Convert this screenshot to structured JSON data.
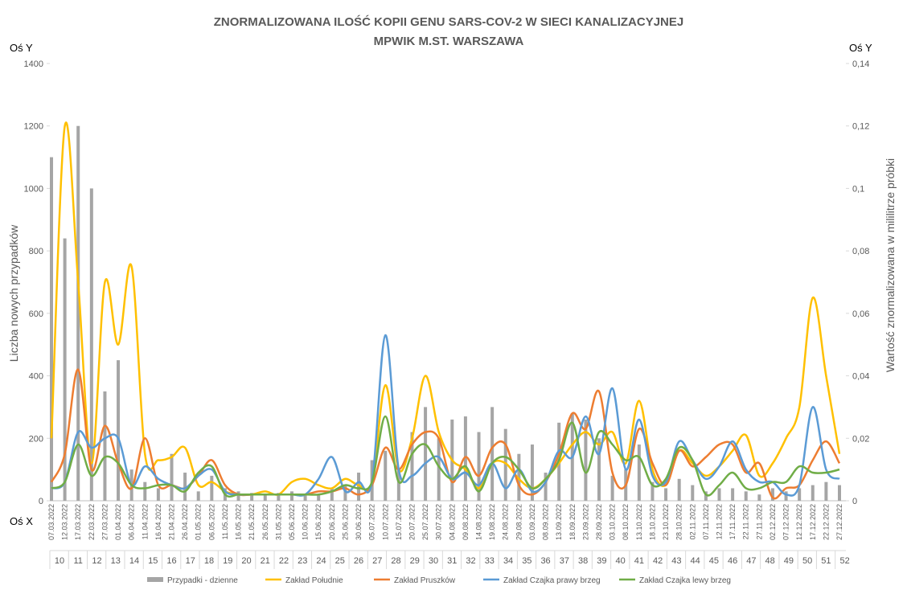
{
  "chart_data": {
    "type": "combo",
    "title": [
      "ZNORMALIZOWANA ILOŚĆ KOPII GENU SARS-COV-2 W SIECI KANALIZACYJNEJ",
      "MPWIK M.ST. WARSZAWA"
    ],
    "y_axis_name": "Oś Y",
    "y2_axis_name": "Oś Y",
    "x_axis_name": "Oś X",
    "ylabel": "Liczba nowych przypadków",
    "y2label": "Wartość znormalizowana w mililitrze próbki",
    "x": [
      "07.03.2022",
      "12.03.2022",
      "17.03.2022",
      "22.03.2022",
      "27.03.2022",
      "01.04.2022",
      "06.04.2022",
      "11.04.2022",
      "16.04.2022",
      "21.04.2022",
      "26.04.2022",
      "01.05.2022",
      "06.05.2022",
      "11.05.2022",
      "16.05.2022",
      "21.05.2022",
      "26.05.2022",
      "31.05.2022",
      "05.06.2022",
      "10.06.2022",
      "15.06.2022",
      "20.06.2022",
      "25.06.2022",
      "30.06.2022",
      "05.07.2022",
      "10.07.2022",
      "15.07.2022",
      "20.07.2022",
      "25.07.2022",
      "30.07.2022",
      "04.08.2022",
      "09.08.2022",
      "14.08.2022",
      "19.08.2022",
      "24.08.2022",
      "29.08.2022",
      "03.09.2022",
      "08.09.2022",
      "13.09.2022",
      "18.09.2022",
      "23.09.2022",
      "28.09.2022",
      "03.10.2022",
      "08.10.2022",
      "13.10.2022",
      "18.10.2022",
      "23.10.2022",
      "28.10.2022",
      "02.11.2022",
      "07.11.2022",
      "12.11.2022",
      "17.11.2022",
      "22.11.2022",
      "27.11.2022",
      "02.12.2022",
      "07.12.2022",
      "12.12.2022",
      "17.12.2022",
      "22.12.2022",
      "27.12.2022"
    ],
    "week_labels": [
      "10",
      "11",
      "12",
      "13",
      "14",
      "15",
      "16",
      "17",
      "18",
      "19",
      "20",
      "21",
      "22",
      "23",
      "24",
      "25",
      "26",
      "27",
      "28",
      "29",
      "30",
      "31",
      "32",
      "33",
      "34",
      "35",
      "36",
      "37",
      "38",
      "39",
      "40",
      "41",
      "42",
      "43",
      "44",
      "45",
      "46",
      "47",
      "48",
      "49",
      "50",
      "51",
      "52"
    ],
    "ylim": [
      0,
      1400
    ],
    "yticks": [
      0,
      200,
      400,
      600,
      800,
      1000,
      1200,
      1400
    ],
    "y2lim": [
      0,
      0.14
    ],
    "y2ticks": [
      0,
      {
        "value": 0.02,
        "label": "0,02"
      },
      {
        "value": 0.04,
        "label": "0,04"
      },
      {
        "value": 0.06,
        "label": "0,06"
      },
      {
        "value": 0.08,
        "label": "0,08"
      },
      {
        "value": 0.1,
        "label": "0,1"
      },
      {
        "value": 0.12,
        "label": "0,12"
      },
      {
        "value": 0.14,
        "label": "0,14"
      }
    ],
    "grid": false,
    "legend": "bottom",
    "series": [
      {
        "name": "Przypadki - dzienne",
        "type": "bar",
        "color": "#a5a5a5",
        "values": [
          1100,
          840,
          1200,
          1000,
          350,
          450,
          100,
          60,
          40,
          150,
          90,
          30,
          80,
          40,
          30,
          25,
          20,
          25,
          30,
          20,
          20,
          40,
          50,
          90,
          130,
          160,
          100,
          220,
          300,
          200,
          260,
          270,
          220,
          300,
          230,
          150,
          180,
          90,
          250,
          280,
          260,
          200,
          80,
          100,
          180,
          60,
          40,
          70,
          50,
          30,
          40,
          40,
          30,
          20,
          40,
          30,
          40,
          50,
          60,
          50
        ]
      },
      {
        "name": "Zakład Południe",
        "type": "line",
        "axis": "y2",
        "color": "#ffc000",
        "values": [
          0.02,
          0.12,
          0.07,
          0.012,
          0.07,
          0.05,
          0.075,
          0.015,
          0.013,
          0.014,
          0.017,
          0.005,
          0.006,
          0.003,
          0.002,
          0.002,
          0.003,
          0.002,
          0.006,
          0.007,
          0.005,
          0.004,
          0.007,
          0.005,
          0.006,
          0.037,
          0.01,
          0.02,
          0.04,
          0.022,
          0.013,
          0.01,
          0.004,
          0.012,
          0.012,
          0.007,
          0.004,
          0.007,
          0.012,
          0.018,
          0.022,
          0.018,
          0.022,
          0.012,
          0.032,
          0.01,
          0.005,
          0.016,
          0.012,
          0.008,
          0.011,
          0.016,
          0.021,
          0.008,
          0.012,
          0.02,
          0.03,
          0.065,
          0.04,
          0.015
        ]
      },
      {
        "name": "Zakład Pruszków",
        "type": "line",
        "axis": "y2",
        "color": "#ed7d31",
        "values": [
          0.006,
          0.015,
          0.042,
          0.01,
          0.024,
          0.012,
          0.004,
          0.02,
          0.005,
          0.005,
          0.004,
          0.008,
          0.013,
          0.005,
          0.002,
          0.002,
          0.002,
          0.002,
          0.002,
          0.002,
          0.003,
          0.003,
          0.004,
          0.002,
          0.005,
          0.017,
          0.01,
          0.018,
          0.022,
          0.02,
          0.006,
          0.014,
          0.008,
          0.017,
          0.018,
          0.005,
          0.002,
          0.006,
          0.015,
          0.028,
          0.023,
          0.035,
          0.009,
          0.005,
          0.023,
          0.012,
          0.005,
          0.016,
          0.011,
          0.014,
          0.018,
          0.018,
          0.009,
          0.012,
          0.001,
          0.004,
          0.005,
          0.013,
          0.019,
          0.012
        ]
      },
      {
        "name": "Zakład Czajka prawy brzeg",
        "type": "line",
        "axis": "y2",
        "color": "#5b9bd5",
        "values": [
          0.004,
          0.006,
          0.022,
          0.017,
          0.02,
          0.02,
          0.005,
          0.011,
          0.007,
          0.005,
          0.004,
          0.008,
          0.01,
          0.003,
          0.002,
          0.002,
          0.002,
          0.002,
          0.002,
          0.002,
          0.007,
          0.014,
          0.003,
          0.006,
          0.006,
          0.053,
          0.01,
          0.008,
          0.012,
          0.014,
          0.007,
          0.009,
          0.005,
          0.012,
          0.004,
          0.01,
          0.003,
          0.006,
          0.016,
          0.014,
          0.027,
          0.015,
          0.036,
          0.01,
          0.026,
          0.008,
          0.006,
          0.019,
          0.013,
          0.007,
          0.011,
          0.019,
          0.01,
          0.006,
          0.006,
          0.002,
          0.005,
          0.03,
          0.01,
          0.007
        ]
      },
      {
        "name": "Zakład Czajka lewy brzeg",
        "type": "line",
        "axis": "y2",
        "color": "#70ad47",
        "values": [
          0.004,
          0.006,
          0.018,
          0.008,
          0.014,
          0.012,
          0.005,
          0.004,
          0.005,
          0.005,
          0.003,
          0.009,
          0.011,
          0.002,
          0.002,
          0.002,
          0.002,
          0.002,
          0.002,
          0.002,
          0.002,
          0.003,
          0.005,
          0.004,
          0.006,
          0.027,
          0.006,
          0.015,
          0.018,
          0.011,
          0.007,
          0.011,
          0.003,
          0.012,
          0.014,
          0.01,
          0.004,
          0.007,
          0.013,
          0.025,
          0.009,
          0.022,
          0.018,
          0.013,
          0.014,
          0.005,
          0.007,
          0.017,
          0.013,
          0.002,
          0.005,
          0.009,
          0.004,
          0.004,
          0.006,
          0.006,
          0.011,
          0.009,
          0.009,
          0.01
        ]
      }
    ]
  }
}
